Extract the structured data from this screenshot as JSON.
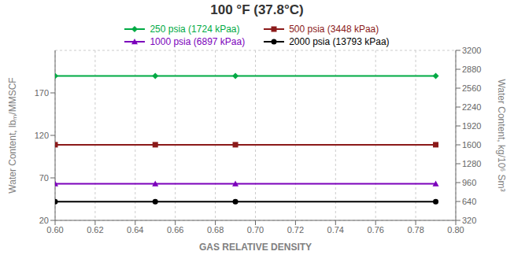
{
  "chart_data": {
    "type": "line",
    "title": "100 °F (37.8°C)",
    "x_label": "GAS RELATIVE DENSITY",
    "y_label": "Water Content, lbₘ/MMSCF",
    "y2_label": "Water Content, kg/10⁶ Sm³",
    "xlim": [
      0.6,
      0.8
    ],
    "ylim": [
      20,
      220
    ],
    "y2lim": [
      320,
      3200
    ],
    "xticks": [
      {
        "value": 0.6,
        "label": "0.60"
      },
      0.62,
      0.64,
      0.66,
      0.68,
      {
        "value": 0.7,
        "label": "0.70"
      },
      0.72,
      0.74,
      0.76,
      0.78,
      {
        "value": 0.8,
        "label": "0.80"
      }
    ],
    "yticks": [
      20,
      70,
      120,
      170
    ],
    "y2ticks": [
      320,
      640,
      960,
      1280,
      1600,
      1920,
      2240,
      2560,
      2880,
      3200
    ],
    "grid": true,
    "x": [
      0.6,
      0.65,
      0.69,
      0.79
    ],
    "series": [
      {
        "name": "250 psia (1724 kPaa)",
        "color": "#00aa44",
        "marker": "diamond",
        "values": [
          190,
          190,
          190,
          190
        ]
      },
      {
        "name": "500 psia (3448 kPaa)",
        "color": "#8b1a1a",
        "marker": "square",
        "values": [
          109,
          109,
          109,
          109
        ]
      },
      {
        "name": "1000 psia (6897 kPaa)",
        "color": "#7b00bb",
        "marker": "triangle",
        "values": [
          63,
          63,
          63,
          63
        ]
      },
      {
        "name": "2000 psia (13793 kPaa)",
        "color": "#000000",
        "marker": "circle",
        "values": [
          42,
          42,
          42,
          42
        ]
      }
    ]
  }
}
